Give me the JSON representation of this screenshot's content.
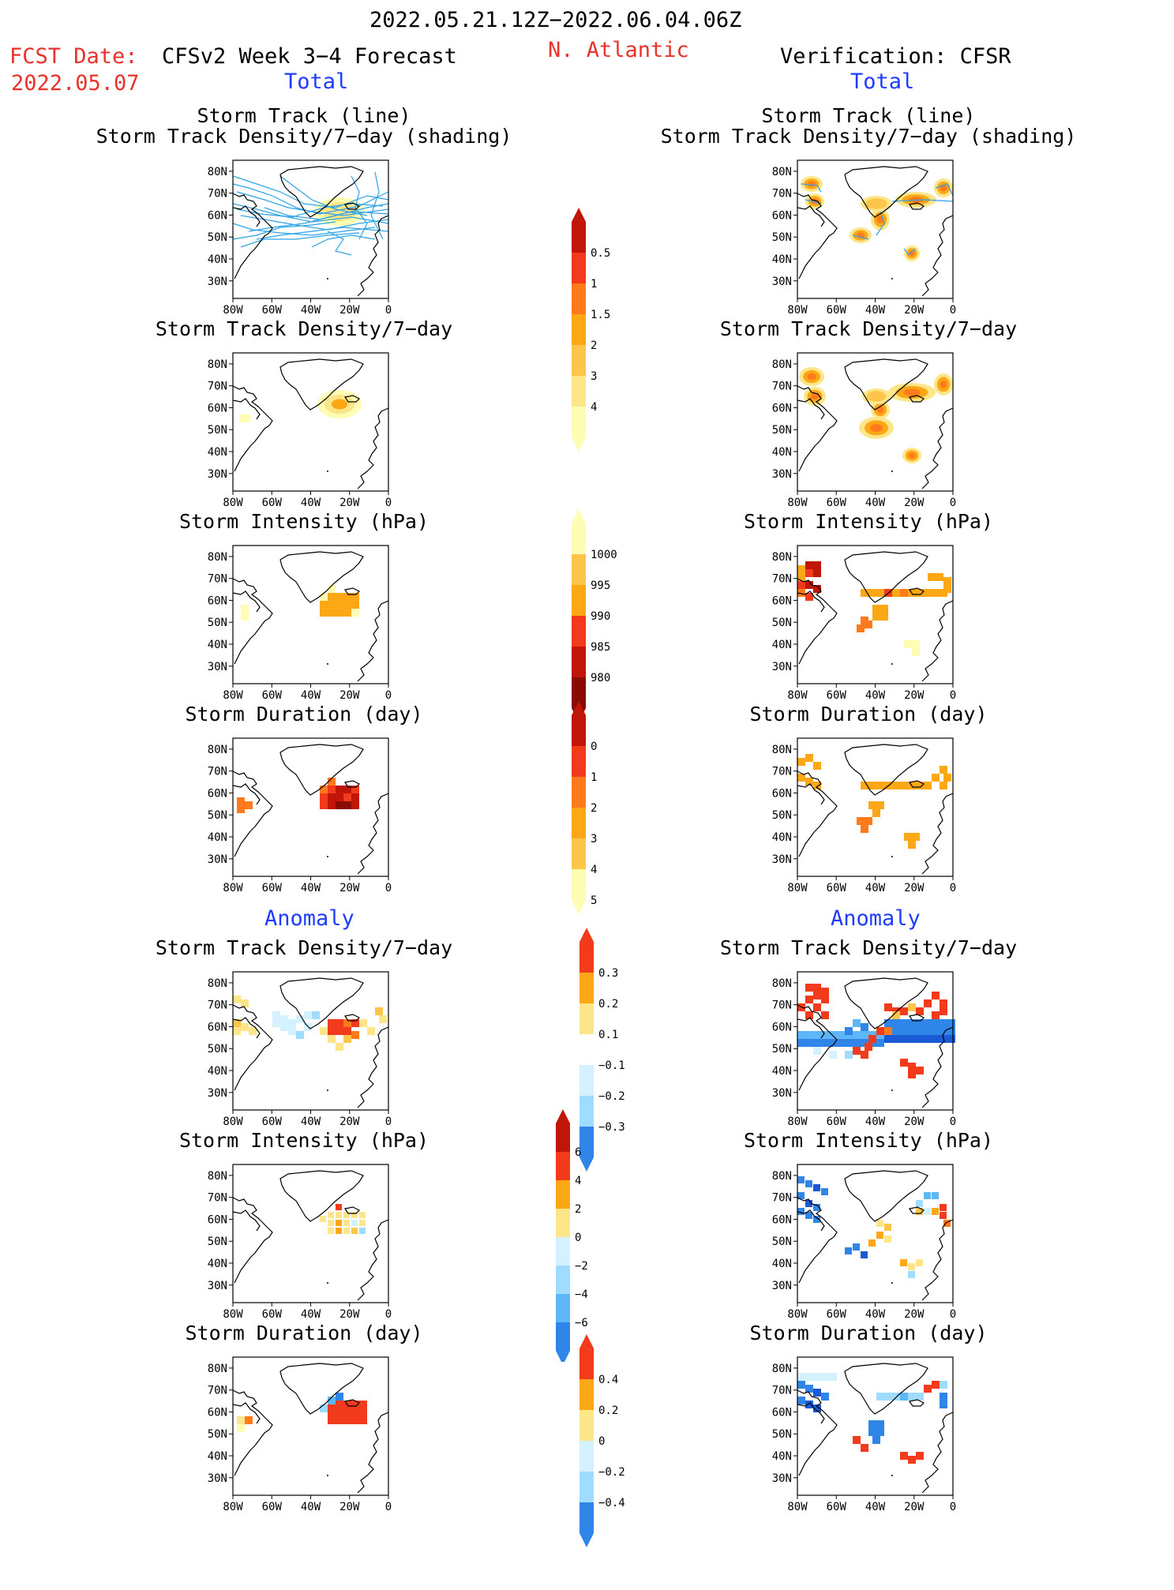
{
  "header": {
    "period": "2022.05.21.12Z−2022.06.04.06Z",
    "region": "N. Atlantic",
    "fcst_label": "FCST Date:",
    "fcst_date": "2022.05.07",
    "forecast": "CFSv2 Week 3−4 Forecast",
    "verification": "Verification: CFSR",
    "total": "Total",
    "anomaly": "Anomaly"
  },
  "axis": {
    "lat": [
      "80N",
      "70N",
      "60N",
      "50N",
      "40N",
      "30N"
    ],
    "lon": [
      "80W",
      "60W",
      "40W",
      "20W",
      "0"
    ]
  },
  "titles": {
    "track_line": "Storm Track (line)",
    "track_shading": "Storm Track Density/7−day (shading)",
    "density": "Storm Track Density/7−day",
    "intensity": "Storm Intensity (hPa)",
    "duration": "Storm Duration (day)"
  },
  "colorbars": {
    "density": [
      "0.5",
      "1",
      "1.5",
      "2",
      "3",
      "4"
    ],
    "intensity": [
      "1000",
      "995",
      "990",
      "985",
      "980"
    ],
    "duration": [
      "0",
      "1",
      "2",
      "3",
      "4",
      "5"
    ],
    "density_anom": [
      "0.3",
      "0.2",
      "0.1",
      "−0.1",
      "−0.2",
      "−0.3"
    ],
    "intensity_anom": [
      "6",
      "4",
      "2",
      "0",
      "−2",
      "−4",
      "−6"
    ],
    "duration_anom": [
      "0.4",
      "0.2",
      "0",
      "−0.2",
      "−0.4"
    ]
  },
  "colors": {
    "warm": [
      "#fffcb4",
      "#fde68a",
      "#fdc54a",
      "#fca716",
      "#ff7a1a",
      "#f23a1c",
      "#c0160a",
      "#8a0a04"
    ],
    "cool": [
      "#d4f1ff",
      "#a0dcff",
      "#5fb6f6",
      "#2f86e8",
      "#1a5ad4"
    ],
    "track_line": "#2ea3e6"
  }
}
